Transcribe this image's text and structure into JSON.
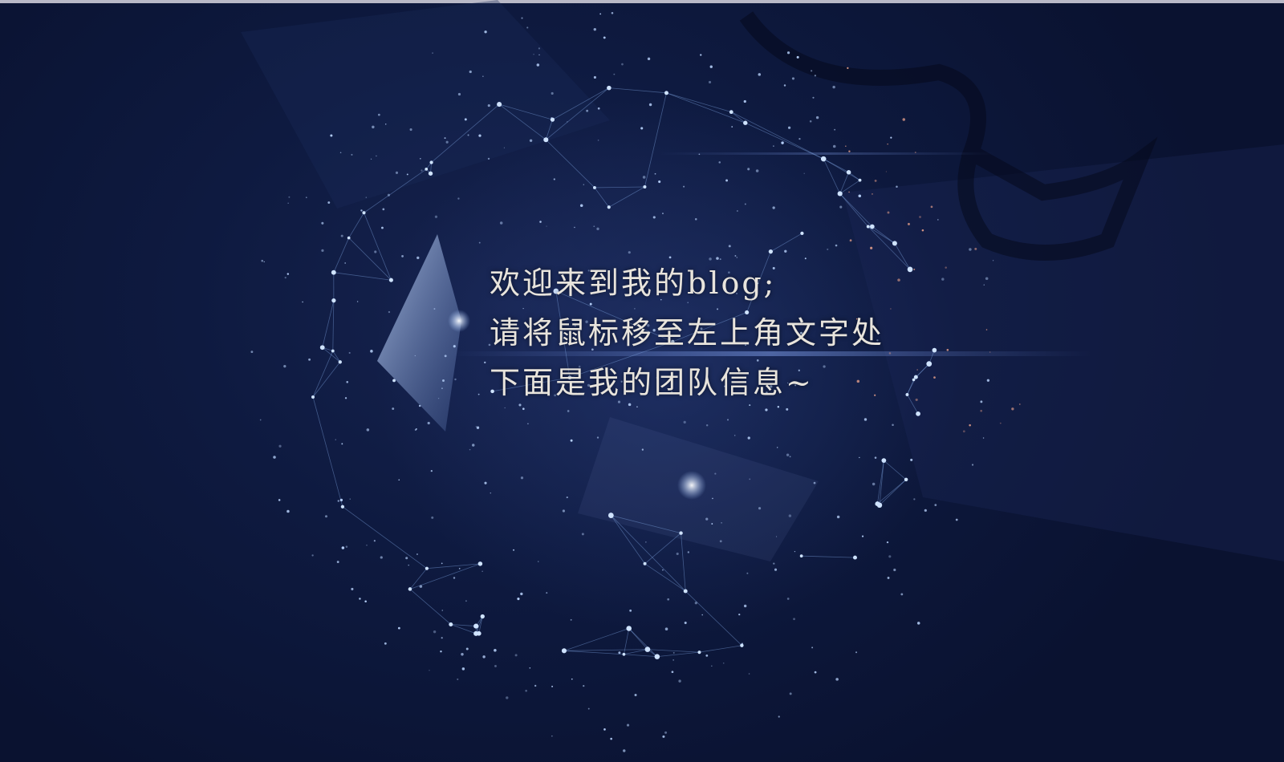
{
  "welcome": {
    "line1": "欢迎来到我的blog;",
    "line2": "请将鼠标移至左上角文字处",
    "line3": "下面是我的团队信息~"
  },
  "colors": {
    "background": "#0b1230",
    "text": "#e8e4dc",
    "node": "#cfe3ff",
    "edge": "#7fa4e0",
    "top_bar": "#b9b9c7"
  }
}
